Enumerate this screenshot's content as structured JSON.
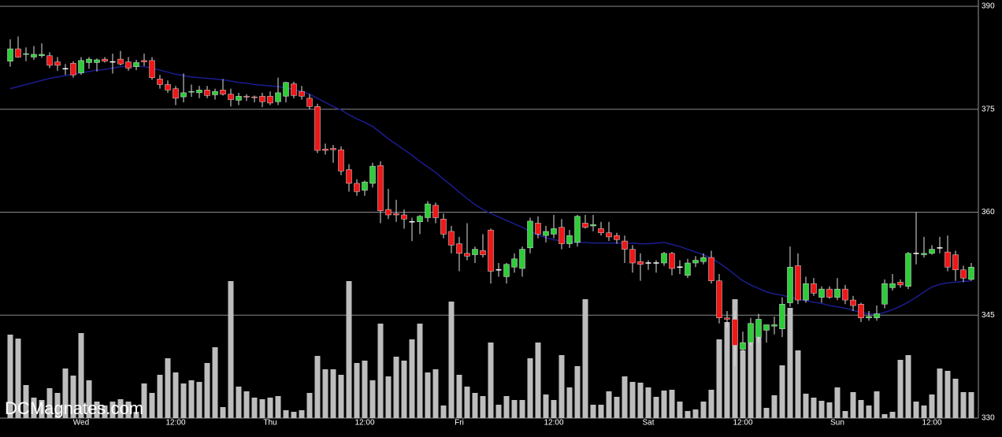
{
  "chart_data": {
    "type": "candlestick",
    "watermark": "DCMagnates.com",
    "categories": [
      null,
      null,
      null,
      null,
      null,
      null,
      null,
      null,
      null,
      "Wed",
      null,
      null,
      null,
      null,
      null,
      null,
      null,
      null,
      null,
      null,
      null,
      "12:00",
      null,
      null,
      null,
      null,
      null,
      null,
      null,
      null,
      null,
      null,
      null,
      "Thu",
      null,
      null,
      null,
      null,
      null,
      null,
      null,
      null,
      null,
      null,
      null,
      "12:00",
      null,
      null,
      null,
      null,
      null,
      null,
      null,
      null,
      null,
      null,
      null,
      "Fri",
      null,
      null,
      null,
      null,
      null,
      null,
      null,
      null,
      null,
      null,
      null,
      "12:00",
      null,
      null,
      null,
      null,
      null,
      null,
      null,
      null,
      null,
      null,
      null,
      "Sat",
      null,
      null,
      null,
      null,
      null,
      null,
      null,
      null,
      null,
      null,
      null,
      "12:00",
      null,
      null,
      null,
      null,
      null,
      null,
      null,
      null,
      null,
      null,
      null,
      "Sun",
      null,
      null,
      null,
      null,
      null,
      null,
      null,
      null,
      null,
      null,
      null,
      "12:00",
      null,
      null,
      null,
      null,
      null
    ],
    "open": [
      382.0,
      383.8,
      383.0,
      382.6,
      382.8,
      382.8,
      381.9,
      380.9,
      381.7,
      380.3,
      381.8,
      381.8,
      382.3,
      381.9,
      382.3,
      381.9,
      381.2,
      382.1,
      382.1,
      379.4,
      378.6,
      378.0,
      376.8,
      377.5,
      377.4,
      377.8,
      377.1,
      377.8,
      377.2,
      376.3,
      376.9,
      376.8,
      376.9,
      376.9,
      376.1,
      376.9,
      378.7,
      377.6,
      376.6,
      375.4,
      369.2,
      369.3,
      369.1,
      366.2,
      364.2,
      363.2,
      364.2,
      366.8,
      360.4,
      359.8,
      359.6,
      358.6,
      358.6,
      359.2,
      361.0,
      359.0,
      357.2,
      355.4,
      354.0,
      353.8,
      354.4,
      357.4,
      351.6,
      350.6,
      352.0,
      351.8,
      354.8,
      358.4,
      356.6,
      356.8,
      357.8,
      355.4,
      355.6,
      358.4,
      358.0,
      357.6,
      357.0,
      356.6,
      355.8,
      354.6,
      352.8,
      352.6,
      352.6,
      352.6,
      354.0,
      352.0,
      350.8,
      352.6,
      352.8,
      353.4,
      350.0,
      344.6,
      344.4,
      340.0,
      341.0,
      341.8,
      342.8,
      343.4,
      343.0,
      346.8,
      352.2,
      347.2,
      349.6,
      347.6,
      348.8,
      347.6,
      348.8,
      347.2,
      346.6,
      344.6,
      344.6,
      346.6,
      349.0,
      349.8,
      349.2,
      354.0,
      353.8,
      354.0,
      354.8,
      354.2,
      353.8,
      351.6,
      350.2
    ],
    "high": [
      385.2,
      385.6,
      384.0,
      384.2,
      384.6,
      383.3,
      382.6,
      381.6,
      382.0,
      382.6,
      382.6,
      382.4,
      382.6,
      383.1,
      383.5,
      382.6,
      382.2,
      383.1,
      382.6,
      380.0,
      379.2,
      378.4,
      380.2,
      378.6,
      378.4,
      378.4,
      378.0,
      379.4,
      378.0,
      377.4,
      377.2,
      377.0,
      377.4,
      377.6,
      379.6,
      379.0,
      379.0,
      378.4,
      377.2,
      375.8,
      370.0,
      369.8,
      369.6,
      367.0,
      364.8,
      364.6,
      367.2,
      367.4,
      363.4,
      361.8,
      360.4,
      359.2,
      359.6,
      361.6,
      361.4,
      359.8,
      358.0,
      356.4,
      358.4,
      355.0,
      356.8,
      357.6,
      352.6,
      352.6,
      354.0,
      355.0,
      359.2,
      359.4,
      358.0,
      359.6,
      359.0,
      357.4,
      359.6,
      359.6,
      359.6,
      358.6,
      358.6,
      357.0,
      356.6,
      355.2,
      354.0,
      353.0,
      353.0,
      354.2,
      354.2,
      353.0,
      353.2,
      353.6,
      354.0,
      354.4,
      351.0,
      345.6,
      345.6,
      342.6,
      344.6,
      345.2,
      343.6,
      344.8,
      347.6,
      355.0,
      354.0,
      350.6,
      350.4,
      349.2,
      349.2,
      350.4,
      349.4,
      347.8,
      346.8,
      345.6,
      346.4,
      350.2,
      351.0,
      350.2,
      354.2,
      360.0,
      356.4,
      355.2,
      356.4,
      356.6,
      354.4,
      352.2,
      352.6
    ],
    "low": [
      381.2,
      382.5,
      382.0,
      382.2,
      382.5,
      381.0,
      380.6,
      380.0,
      379.6,
      380.0,
      380.9,
      380.5,
      381.8,
      380.2,
      381.4,
      380.6,
      380.7,
      381.3,
      379.3,
      378.0,
      377.4,
      375.6,
      376.0,
      376.8,
      376.6,
      376.6,
      376.4,
      377.0,
      375.4,
      375.6,
      376.2,
      376.0,
      375.3,
      375.6,
      375.6,
      376.0,
      376.6,
      376.4,
      375.0,
      368.6,
      368.4,
      367.2,
      365.4,
      363.0,
      362.4,
      362.4,
      363.6,
      358.4,
      359.0,
      358.6,
      357.6,
      355.8,
      356.8,
      358.6,
      358.4,
      356.2,
      354.0,
      351.4,
      353.0,
      352.6,
      353.4,
      349.6,
      350.6,
      349.6,
      351.2,
      350.6,
      354.0,
      356.2,
      355.6,
      356.2,
      354.6,
      354.8,
      355.0,
      357.6,
      357.2,
      356.6,
      355.8,
      355.4,
      352.6,
      351.2,
      350.0,
      351.6,
      351.2,
      352.2,
      350.8,
      351.0,
      350.4,
      352.0,
      352.4,
      349.6,
      343.8,
      343.2,
      337.6,
      339.6,
      340.6,
      341.0,
      341.0,
      342.2,
      341.8,
      346.2,
      346.6,
      346.8,
      347.8,
      346.8,
      347.4,
      347.2,
      346.6,
      345.6,
      344.0,
      344.2,
      344.2,
      346.0,
      348.6,
      349.0,
      348.8,
      352.4,
      353.4,
      353.8,
      354.0,
      351.4,
      350.0,
      349.8,
      350.0
    ],
    "close": [
      383.8,
      382.6,
      383.1,
      383.0,
      383.0,
      381.4,
      381.4,
      380.9,
      380.0,
      382.1,
      382.3,
      382.2,
      382.0,
      381.9,
      381.6,
      381.0,
      381.8,
      381.9,
      379.6,
      378.6,
      377.8,
      376.6,
      377.4,
      377.6,
      377.8,
      377.0,
      377.6,
      377.2,
      376.4,
      376.9,
      376.8,
      376.7,
      376.1,
      375.9,
      377.4,
      378.9,
      377.0,
      376.9,
      375.4,
      369.0,
      369.0,
      369.1,
      366.0,
      364.2,
      363.0,
      364.4,
      366.7,
      360.2,
      359.6,
      359.6,
      359.0,
      358.6,
      359.4,
      361.2,
      359.2,
      356.8,
      355.2,
      354.0,
      353.6,
      354.6,
      353.8,
      351.4,
      351.6,
      352.4,
      353.2,
      354.6,
      358.7,
      356.8,
      357.2,
      357.6,
      355.4,
      356.6,
      359.4,
      357.8,
      358.2,
      357.0,
      356.4,
      356.0,
      354.6,
      352.6,
      352.4,
      352.6,
      352.6,
      354.0,
      351.8,
      352.0,
      352.6,
      353.0,
      353.4,
      350.0,
      344.6,
      344.4,
      340.6,
      341.0,
      343.8,
      344.4,
      343.6,
      343.6,
      346.6,
      352.0,
      347.2,
      349.6,
      348.2,
      348.8,
      347.6,
      348.8,
      347.2,
      346.4,
      344.6,
      344.8,
      345.2,
      349.6,
      349.6,
      349.4,
      354.0,
      354.0,
      354.0,
      354.6,
      354.8,
      352.0,
      351.6,
      350.4,
      352.0
    ],
    "volume": [
      106,
      101,
      42,
      26,
      23,
      38,
      32,
      63,
      54,
      108,
      48,
      21,
      16,
      21,
      24,
      21,
      8,
      44,
      32,
      55,
      76,
      58,
      44,
      48,
      46,
      70,
      90,
      14,
      174,
      40,
      34,
      26,
      24,
      26,
      28,
      10,
      8,
      10,
      32,
      79,
      62,
      62,
      55,
      174,
      70,
      73,
      48,
      120,
      53,
      78,
      73,
      100,
      120,
      58,
      62,
      16,
      148,
      55,
      40,
      32,
      28,
      96,
      17,
      28,
      23,
      23,
      76,
      96,
      30,
      23,
      80,
      39,
      66,
      151,
      17,
      17,
      34,
      27,
      53,
      46,
      45,
      39,
      27,
      35,
      36,
      21,
      9,
      11,
      21,
      36,
      100,
      122,
      151,
      86,
      119,
      121,
      13,
      29,
      67,
      140,
      86,
      31,
      26,
      22,
      20,
      39,
      9,
      33,
      23,
      16,
      34,
      5,
      8,
      74,
      80,
      21,
      16,
      30,
      63,
      60,
      50,
      33,
      33
    ],
    "ma": [
      378.0,
      378.3,
      378.6,
      378.9,
      379.2,
      379.5,
      379.7,
      379.9,
      380.1,
      380.3,
      380.5,
      380.7,
      380.8,
      381.0,
      381.2,
      381.3,
      381.3,
      381.2,
      381.0,
      380.7,
      380.4,
      380.1,
      379.9,
      379.7,
      379.6,
      379.5,
      379.4,
      379.3,
      379.1,
      378.9,
      378.8,
      378.6,
      378.5,
      378.4,
      378.3,
      378.1,
      377.9,
      377.6,
      377.2,
      376.6,
      376.0,
      375.4,
      374.9,
      374.2,
      373.6,
      373.1,
      372.5,
      371.6,
      370.7,
      369.9,
      369.1,
      368.3,
      367.4,
      366.6,
      365.8,
      364.8,
      363.9,
      362.9,
      362.0,
      361.1,
      360.4,
      359.8,
      359.3,
      358.8,
      358.3,
      357.8,
      357.2,
      356.7,
      356.3,
      356.0,
      355.8,
      355.7,
      355.6,
      355.6,
      355.5,
      355.5,
      355.5,
      355.5,
      355.5,
      355.5,
      355.4,
      355.4,
      355.5,
      355.6,
      355.3,
      355.0,
      354.6,
      354.2,
      353.8,
      353.3,
      352.6,
      351.8,
      350.9,
      350.0,
      349.4,
      348.9,
      348.4,
      348.1,
      347.9,
      347.6,
      347.3,
      347.1,
      346.9,
      346.7,
      346.4,
      346.2,
      346.0,
      345.7,
      345.4,
      345.2,
      345.1,
      345.4,
      345.8,
      346.3,
      346.9,
      347.6,
      348.4,
      349.1,
      349.5,
      349.7,
      349.8,
      349.9,
      350.0
    ],
    "up_color": "#2fcc3a",
    "down_color": "#ee1818",
    "doji_color": "#ffffff",
    "volume_color": "#bdbdbd",
    "ma_color": "#1c1c8f",
    "ylim": [
      330,
      390
    ],
    "yticks": [
      330,
      345,
      360,
      375,
      390
    ],
    "grid": true
  }
}
